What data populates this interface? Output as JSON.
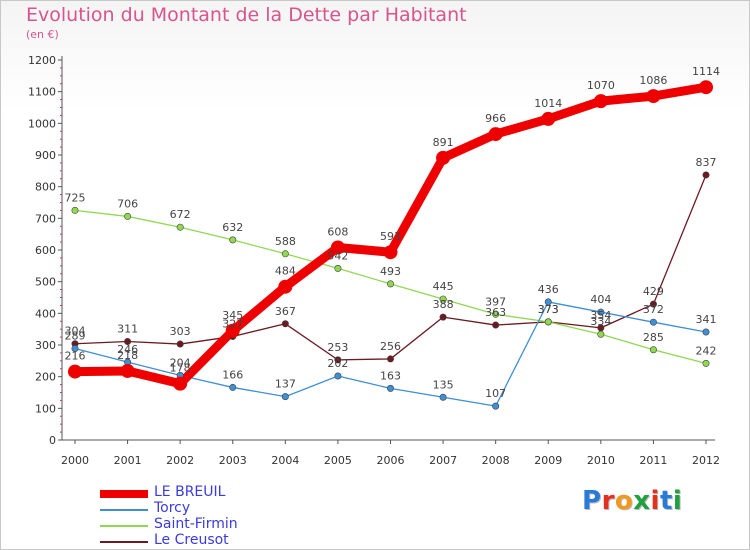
{
  "chart_data": {
    "type": "line",
    "title": "Evolution du Montant de la Dette par Habitant",
    "subtitle": "(en €)",
    "x": [
      "2000",
      "2001",
      "2002",
      "2003",
      "2004",
      "2005",
      "2006",
      "2007",
      "2008",
      "2009",
      "2010",
      "2011",
      "2012"
    ],
    "ylim": [
      0,
      1200
    ],
    "yticks": [
      0,
      100,
      200,
      300,
      400,
      500,
      600,
      700,
      800,
      900,
      1000,
      1100,
      1200
    ],
    "grid": false,
    "legend_position": "bottom-left",
    "series": [
      {
        "name": "LE BREUIL",
        "color": "#ee0000",
        "values": [
          216,
          218,
          178,
          345,
          484,
          608,
          593,
          891,
          966,
          1014,
          1070,
          1086,
          1114
        ],
        "labels": [
          "216",
          "218",
          "178",
          "345",
          "484",
          "608",
          "593",
          "891",
          "966",
          "1014",
          "1070",
          "1086",
          "1114"
        ]
      },
      {
        "name": "Torcy",
        "color": "#3f8fd6",
        "values": [
          289,
          246,
          204,
          166,
          137,
          202,
          163,
          135,
          107,
          436,
          404,
          372,
          341
        ],
        "labels": [
          "289",
          "246",
          "204",
          "166",
          "137",
          "202",
          "163",
          "135",
          "107",
          "436",
          "404",
          "372",
          "341"
        ]
      },
      {
        "name": "Saint-Firmin",
        "color": "#90d850",
        "values": [
          725,
          706,
          672,
          632,
          588,
          542,
          493,
          445,
          397,
          373,
          334,
          285,
          242
        ],
        "labels": [
          "725",
          "706",
          "672",
          "632",
          "588",
          "542",
          "493",
          "445",
          "397",
          "373",
          "334",
          "285",
          "242"
        ]
      },
      {
        "name": "Le Creusot",
        "color": "#6b1a22",
        "values": [
          304,
          311,
          303,
          327,
          367,
          253,
          256,
          388,
          363,
          373,
          354,
          429,
          837
        ],
        "labels": [
          "304",
          "311",
          "303",
          "327",
          "367",
          "253",
          "256",
          "388",
          "363",
          "373",
          "354",
          "429",
          "837"
        ]
      }
    ]
  },
  "logo": {
    "text": "Proxiti",
    "colors": [
      "#2a7ad8",
      "#e3301f",
      "#f09820",
      "#20a040",
      "#e3301f",
      "#2a7ad8",
      "#20a040"
    ]
  }
}
